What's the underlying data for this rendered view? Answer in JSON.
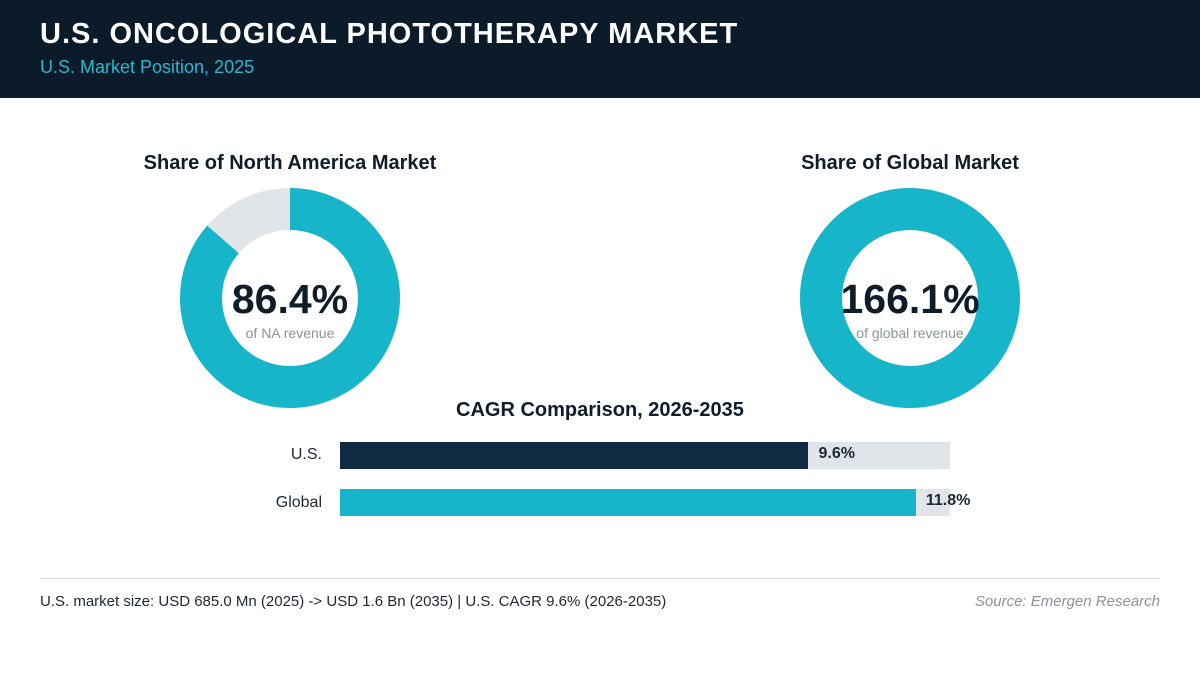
{
  "header": {
    "title": "U.S. ONCOLOGICAL PHOTOTHERAPY MARKET",
    "subtitle": "U.S. Market Position, 2025"
  },
  "colors": {
    "header_bg": "#0b1b2a",
    "accent": "#16b5c9",
    "navy": "#0f2a42",
    "track": "#e1e5e9"
  },
  "chart_data": [
    {
      "type": "pie",
      "variant": "donut",
      "title": "Share of North America Market",
      "value": 86.4,
      "value_label": "86.4%",
      "sublabel": "of NA revenue",
      "color": "#16b5c9"
    },
    {
      "type": "pie",
      "variant": "donut",
      "title": "Share of Global Market",
      "value": 166.1,
      "value_label": "166.1%",
      "sublabel": "of global revenue",
      "color": "#16b5c9"
    },
    {
      "type": "bar",
      "orientation": "horizontal",
      "title": "CAGR Comparison, 2026-2035",
      "categories": [
        "U.S.",
        "Global"
      ],
      "values": [
        9.6,
        11.8
      ],
      "value_labels": [
        "9.6%",
        "11.8%"
      ],
      "colors": [
        "#0f2a42",
        "#16b5c9"
      ],
      "xlim": [
        0,
        12.5
      ]
    }
  ],
  "footer": {
    "note": "U.S. market size: USD 685.0 Mn (2025) -> USD 1.6 Bn (2035)  |  U.S. CAGR 9.6% (2026-2035)",
    "source": "Source: Emergen Research"
  }
}
